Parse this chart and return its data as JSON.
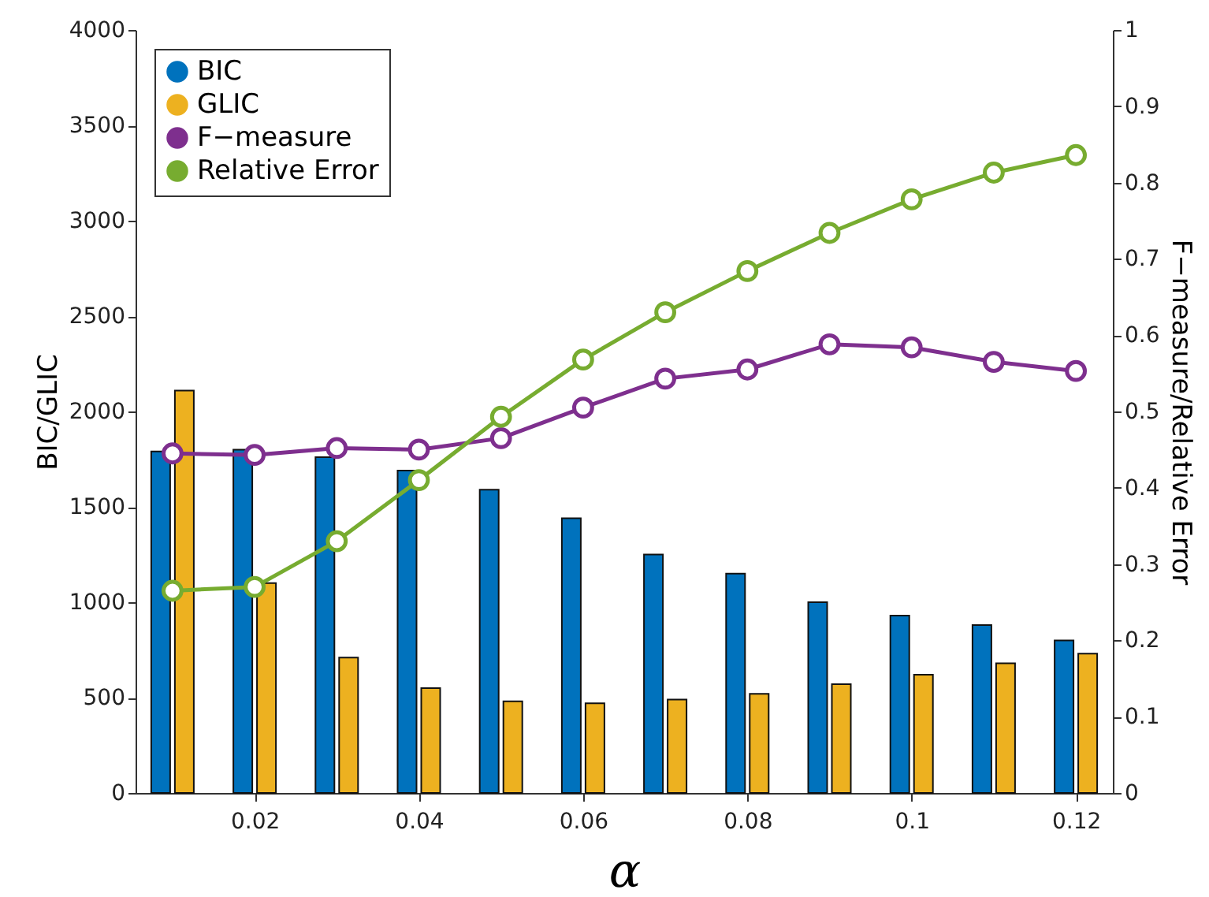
{
  "chart_data": {
    "type": "bar",
    "xlabel": "α",
    "ylabel": "BIC/GLIC",
    "y2label": "F−measure/Relative Error",
    "x": [
      0.01,
      0.02,
      0.03,
      0.04,
      0.05,
      0.06,
      0.07,
      0.08,
      0.09,
      0.1,
      0.11,
      0.12
    ],
    "xlim": [
      0.0055,
      0.1245
    ],
    "xticks": [
      0.02,
      0.04,
      0.06,
      0.08,
      0.1,
      0.12
    ],
    "ylim": [
      0,
      4000
    ],
    "yticks": [
      0,
      500,
      1000,
      1500,
      2000,
      2500,
      3000,
      3500,
      4000
    ],
    "y2lim": [
      0,
      1
    ],
    "y2ticks": [
      0,
      0.1,
      0.2,
      0.3,
      0.4,
      0.5,
      0.6,
      0.7,
      0.8,
      0.9,
      1
    ],
    "legend": "top left",
    "marker": "circle",
    "series": [
      {
        "name": "BIC",
        "color": "#0072bd",
        "values": [
          1790,
          1800,
          1760,
          1690,
          1590,
          1440,
          1250,
          1150,
          1000,
          930,
          880,
          800
        ]
      },
      {
        "name": "GLIC",
        "color": "#edb120",
        "values": [
          2110,
          1100,
          710,
          550,
          480,
          470,
          490,
          520,
          570,
          620,
          680,
          730
        ]
      },
      {
        "name": "F−measure",
        "type": "line",
        "axis": "y2",
        "color": "#7e2f8e",
        "values": [
          0.445,
          0.443,
          0.452,
          0.45,
          0.465,
          0.505,
          0.543,
          0.555,
          0.588,
          0.584,
          0.565,
          0.553
        ]
      },
      {
        "name": "Relative Error",
        "type": "line",
        "axis": "y2",
        "color": "#77ac30",
        "values": [
          0.265,
          0.27,
          0.33,
          0.41,
          0.493,
          0.568,
          0.63,
          0.684,
          0.734,
          0.778,
          0.813,
          0.836
        ]
      }
    ]
  }
}
